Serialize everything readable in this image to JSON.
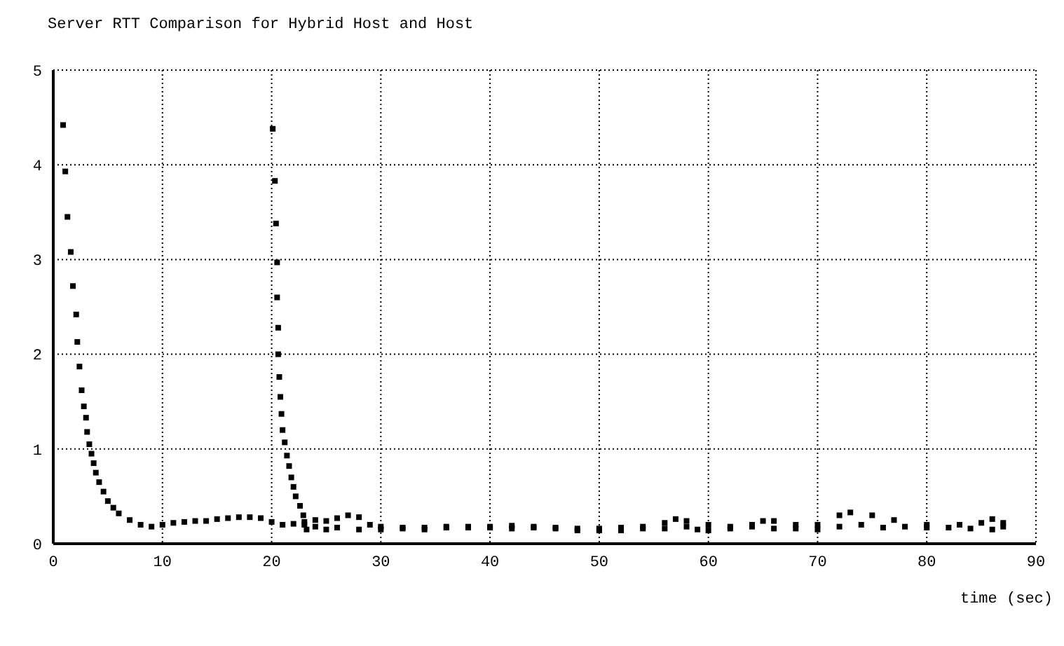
{
  "chart_data": {
    "type": "scatter",
    "title": "Server RTT Comparison for Hybrid Host and Host",
    "xlabel": "time (sec)",
    "xlim": [
      0,
      90
    ],
    "xticks": [
      0,
      10,
      20,
      30,
      40,
      50,
      60,
      70,
      80,
      90
    ],
    "ylim": [
      0,
      5
    ],
    "yticks": [
      0,
      1,
      2,
      3,
      4,
      5
    ],
    "grid": true,
    "marker": "square",
    "legend": false,
    "series": [
      {
        "color": "#000000",
        "x": [
          0.9,
          1.1,
          1.3,
          1.6,
          1.8,
          2.1,
          2.2,
          2.4,
          2.6,
          2.8,
          3.0,
          3.1,
          3.3,
          3.5,
          3.7,
          3.9,
          4.2,
          4.6,
          5,
          5.5,
          6,
          7,
          8,
          9,
          10,
          11,
          12,
          13,
          14,
          15,
          16,
          17,
          18,
          19,
          20,
          21,
          22,
          23,
          24,
          25,
          26,
          27,
          28,
          29,
          30,
          32,
          34,
          36,
          38,
          40,
          42,
          44,
          46,
          48,
          50,
          52,
          54,
          56,
          57,
          58,
          60,
          62,
          64,
          65,
          66,
          68,
          70,
          72,
          73,
          75,
          77,
          80,
          83,
          85,
          86,
          87
        ],
        "values": [
          4.42,
          3.93,
          3.45,
          3.08,
          2.72,
          2.42,
          2.13,
          1.87,
          1.62,
          1.45,
          1.33,
          1.18,
          1.05,
          0.95,
          0.85,
          0.75,
          0.65,
          0.55,
          0.45,
          0.38,
          0.32,
          0.25,
          0.2,
          0.18,
          0.2,
          0.22,
          0.23,
          0.24,
          0.24,
          0.26,
          0.27,
          0.28,
          0.28,
          0.27,
          0.23,
          0.2,
          0.21,
          0.23,
          0.25,
          0.24,
          0.27,
          0.3,
          0.28,
          0.2,
          0.18,
          0.17,
          0.17,
          0.18,
          0.18,
          0.18,
          0.19,
          0.18,
          0.17,
          0.16,
          0.16,
          0.17,
          0.18,
          0.22,
          0.26,
          0.24,
          0.2,
          0.18,
          0.2,
          0.24,
          0.24,
          0.2,
          0.2,
          0.3,
          0.33,
          0.3,
          0.25,
          0.2,
          0.2,
          0.22,
          0.26,
          0.22
        ]
      },
      {
        "color": "#000000",
        "x": [
          20.1,
          20.3,
          20.4,
          20.5,
          20.5,
          20.6,
          20.6,
          20.7,
          20.8,
          20.9,
          21.0,
          21.2,
          21.4,
          21.6,
          21.8,
          22,
          22.2,
          22.6,
          22.9,
          23.0,
          23.2,
          24,
          25,
          26,
          28,
          30,
          32,
          34,
          36,
          38,
          40,
          42,
          44,
          46,
          48,
          50,
          52,
          54,
          56,
          58,
          59,
          60,
          62,
          64,
          66,
          68,
          70,
          72,
          74,
          76,
          78,
          80,
          82,
          84,
          86,
          87
        ],
        "values": [
          4.38,
          3.83,
          3.38,
          2.97,
          2.6,
          2.28,
          2.0,
          1.76,
          1.55,
          1.37,
          1.2,
          1.07,
          0.93,
          0.82,
          0.7,
          0.6,
          0.5,
          0.4,
          0.3,
          0.2,
          0.15,
          0.18,
          0.15,
          0.17,
          0.15,
          0.15,
          0.16,
          0.15,
          0.17,
          0.17,
          0.17,
          0.16,
          0.17,
          0.16,
          0.14,
          0.14,
          0.14,
          0.16,
          0.16,
          0.18,
          0.15,
          0.14,
          0.16,
          0.18,
          0.16,
          0.16,
          0.15,
          0.18,
          0.2,
          0.17,
          0.18,
          0.17,
          0.17,
          0.16,
          0.15,
          0.18
        ]
      }
    ]
  }
}
